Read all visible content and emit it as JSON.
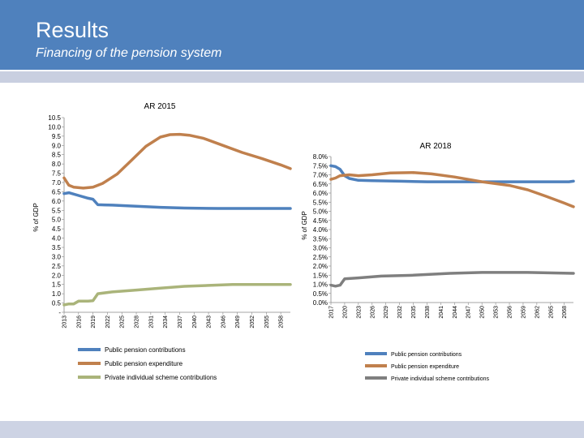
{
  "slide": {
    "title": "Results",
    "subtitle": "Financing of the pension system"
  },
  "colors": {
    "header_blue": "#4f81bd",
    "contrib": "#4f81bd",
    "expend": "#c0804d",
    "private_left": "#aab47a",
    "private_right": "#7f7f7f"
  },
  "chart_data": [
    {
      "type": "line",
      "title": "AR 2015",
      "ylabel": "% of GDP",
      "ylim": [
        0,
        10.5
      ],
      "yticks": [
        "-",
        "0.5",
        "1.0",
        "1.5",
        "2.0",
        "2.5",
        "3.0",
        "3.5",
        "4.0",
        "4.5",
        "5.0",
        "5.5",
        "6.0",
        "6.5",
        "7.0",
        "7.5",
        "8.0",
        "8.5",
        "9.0",
        "9.5",
        "10.0",
        "10.5"
      ],
      "xticks": [
        "2013",
        "2016",
        "2019",
        "2022",
        "2025",
        "2028",
        "2031",
        "2034",
        "2037",
        "2040",
        "2043",
        "2046",
        "2049",
        "2052",
        "2055",
        "2058"
      ],
      "xlim": [
        2013,
        2060
      ],
      "legend": [
        "Public pension contributions",
        "Public pension expenditure",
        "Private individual scheme contributions"
      ],
      "series": [
        {
          "name": "Public pension contributions",
          "x": [
            2013,
            2014,
            2016,
            2018,
            2019,
            2020,
            2023,
            2028,
            2033,
            2038,
            2045,
            2052,
            2060
          ],
          "values": [
            6.4,
            6.45,
            6.3,
            6.15,
            6.1,
            5.8,
            5.78,
            5.72,
            5.66,
            5.62,
            5.6,
            5.6,
            5.6
          ]
        },
        {
          "name": "Public pension expenditure",
          "x": [
            2013,
            2014,
            2015,
            2017,
            2019,
            2021,
            2024,
            2027,
            2030,
            2033,
            2035,
            2037,
            2039,
            2042,
            2046,
            2050,
            2054,
            2058,
            2060
          ],
          "values": [
            7.25,
            6.85,
            6.75,
            6.7,
            6.75,
            6.95,
            7.45,
            8.2,
            8.95,
            9.45,
            9.58,
            9.6,
            9.55,
            9.38,
            9.0,
            8.62,
            8.3,
            7.95,
            7.75
          ]
        },
        {
          "name": "Private individual scheme contributions",
          "x": [
            2013,
            2014,
            2015,
            2016,
            2017,
            2018,
            2019,
            2020,
            2023,
            2028,
            2033,
            2038,
            2043,
            2048,
            2054,
            2060
          ],
          "values": [
            0.4,
            0.45,
            0.45,
            0.6,
            0.6,
            0.6,
            0.62,
            1.0,
            1.1,
            1.2,
            1.3,
            1.4,
            1.45,
            1.5,
            1.5,
            1.5
          ]
        }
      ]
    },
    {
      "type": "line",
      "title": "AR 2018",
      "ylabel": "% of GDP",
      "ylim": [
        0,
        8.0
      ],
      "yticks": [
        "0.0%",
        "0.5%",
        "1.0%",
        "1.5%",
        "2.0%",
        "2.5%",
        "3.0%",
        "3.5%",
        "4.0%",
        "4.5%",
        "5.0%",
        "5.5%",
        "6.0%",
        "6.5%",
        "7.0%",
        "7.5%",
        "8.0%"
      ],
      "xticks": [
        "2017",
        "2020",
        "2023",
        "2026",
        "2029",
        "2032",
        "2035",
        "2038",
        "2041",
        "2044",
        "2047",
        "2050",
        "2053",
        "2056",
        "2059",
        "2062",
        "2065",
        "2068"
      ],
      "xlim": [
        2017,
        2070
      ],
      "legend": [
        "Public pension contributions",
        "Public pension expenditure",
        "Private individual scheme contributions"
      ],
      "series": [
        {
          "name": "Public pension contributions",
          "x": [
            2017,
            2018,
            2019,
            2020,
            2021,
            2023,
            2026,
            2032,
            2038,
            2050,
            2060,
            2069,
            2070
          ],
          "values": [
            7.5,
            7.45,
            7.3,
            6.95,
            6.8,
            6.7,
            6.68,
            6.65,
            6.62,
            6.62,
            6.62,
            6.62,
            6.65
          ]
        },
        {
          "name": "Public pension expenditure",
          "x": [
            2017,
            2018,
            2019,
            2021,
            2023,
            2026,
            2030,
            2035,
            2039,
            2044,
            2050,
            2056,
            2060,
            2064,
            2068,
            2070
          ],
          "values": [
            6.75,
            6.82,
            6.95,
            7.0,
            6.95,
            7.0,
            7.1,
            7.12,
            7.05,
            6.88,
            6.62,
            6.42,
            6.18,
            5.82,
            5.45,
            5.25
          ]
        },
        {
          "name": "Private individual scheme contributions",
          "x": [
            2017,
            2018,
            2019,
            2020,
            2023,
            2028,
            2035,
            2043,
            2050,
            2060,
            2070
          ],
          "values": [
            0.95,
            0.9,
            0.95,
            1.3,
            1.35,
            1.45,
            1.5,
            1.6,
            1.65,
            1.65,
            1.6
          ]
        }
      ]
    }
  ]
}
